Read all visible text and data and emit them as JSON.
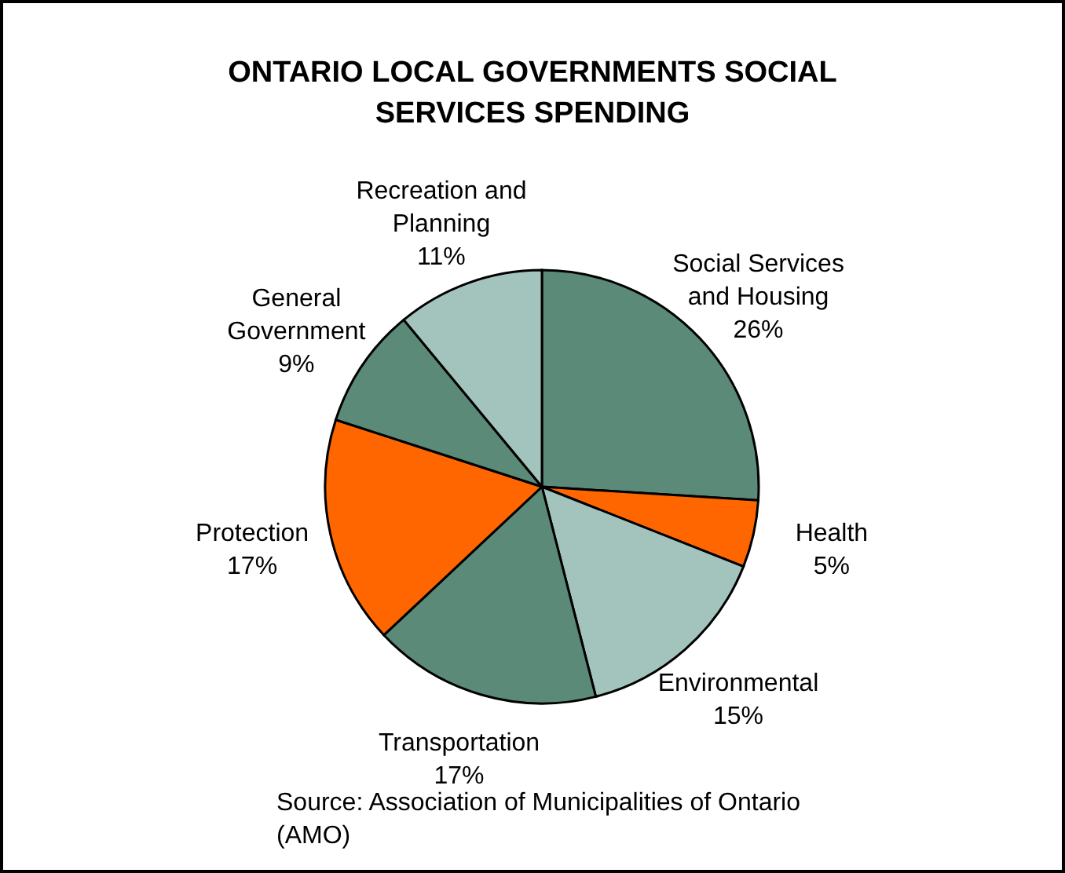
{
  "chart_data": {
    "type": "pie",
    "title": "ONTARIO LOCAL GOVERNMENTS SOCIAL SERVICES SPENDING",
    "categories": [
      "Social Services and Housing",
      "Health",
      "Environmental",
      "Transportation",
      "Protection",
      "General Government",
      "Recreation and Planning"
    ],
    "values": [
      26,
      5,
      15,
      17,
      17,
      9,
      11
    ],
    "value_labels": [
      "26%",
      "5%",
      "15%",
      "17%",
      "17%",
      "9%",
      "11%"
    ],
    "colors": [
      "#5b8a78",
      "#ff6600",
      "#a3c4bd",
      "#5b8a78",
      "#ff6600",
      "#5b8a78",
      "#a3c4bd"
    ],
    "annotations": [
      "Source: Association of Municipalities of Ontario (AMO)"
    ]
  }
}
